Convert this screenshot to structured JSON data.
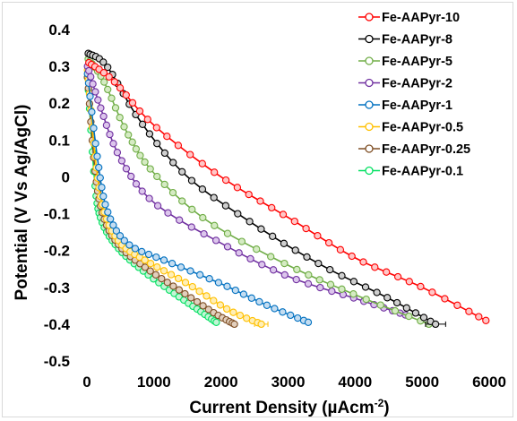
{
  "chart_data": {
    "type": "line",
    "title": "",
    "xlabel": "Current Density (µAcm",
    "xlabel_sup": "-2",
    "xlabel_end": ")",
    "ylabel": "Potential (V Vs Ag/AgCl)",
    "xlim": [
      0,
      6000
    ],
    "ylim": [
      -0.5,
      0.4
    ],
    "x_ticks": [
      0,
      1000,
      2000,
      3000,
      4000,
      5000,
      6000
    ],
    "x_tick_labels": [
      "0",
      "1000",
      "2000",
      "3000",
      "4000",
      "5000",
      "6000"
    ],
    "y_ticks": [
      0.4,
      0.3,
      0.2,
      0.1,
      0,
      -0.1,
      -0.2,
      -0.3,
      -0.4,
      -0.5
    ],
    "y_tick_labels": [
      "0.4",
      "0.3",
      "0.2",
      "0.1",
      "0",
      "-0.1",
      "-0.2",
      "-0.3",
      "-0.4",
      "-0.5"
    ],
    "grid": false,
    "legend_position": "top-right",
    "markers": "open-circle",
    "series": [
      {
        "name": "Fe-AAPyr-10",
        "color": "#ff0000",
        "fill": "#ffc7c7",
        "xerr_end": 0,
        "anchors": [
          [
            30,
            0.31
          ],
          [
            400,
            0.26
          ],
          [
            1000,
            0.14
          ],
          [
            2000,
            0.0
          ],
          [
            3000,
            -0.11
          ],
          [
            4000,
            -0.22
          ],
          [
            5000,
            -0.3
          ],
          [
            5950,
            -0.39
          ]
        ]
      },
      {
        "name": "Fe-AAPyr-8",
        "color": "#000000",
        "fill": "#cfcfcf",
        "xerr_end": 150,
        "anchors": [
          [
            20,
            0.335
          ],
          [
            300,
            0.3
          ],
          [
            800,
            0.15
          ],
          [
            1500,
            0.0
          ],
          [
            2500,
            -0.13
          ],
          [
            3500,
            -0.24
          ],
          [
            4500,
            -0.33
          ],
          [
            5200,
            -0.4
          ]
        ]
      },
      {
        "name": "Fe-AAPyr-5",
        "color": "#70ad47",
        "fill": "#d5ebc3",
        "xerr_end": 0,
        "anchors": [
          [
            20,
            0.32
          ],
          [
            250,
            0.26
          ],
          [
            600,
            0.12
          ],
          [
            1000,
            0.01
          ],
          [
            1800,
            -0.12
          ],
          [
            3000,
            -0.24
          ],
          [
            4000,
            -0.32
          ],
          [
            5100,
            -0.4
          ]
        ]
      },
      {
        "name": "Fe-AAPyr-2",
        "color": "#7030a0",
        "fill": "#dcc6ec",
        "xerr_end": 0,
        "anchors": [
          [
            10,
            0.3
          ],
          [
            200,
            0.19
          ],
          [
            500,
            0.05
          ],
          [
            1000,
            -0.07
          ],
          [
            2000,
            -0.18
          ],
          [
            3000,
            -0.27
          ],
          [
            4000,
            -0.33
          ],
          [
            4750,
            -0.375
          ]
        ]
      },
      {
        "name": "Fe-AAPyr-1",
        "color": "#0070c0",
        "fill": "#c4ddf1",
        "xerr_end": 0,
        "anchors": [
          [
            10,
            0.28
          ],
          [
            150,
            0.06
          ],
          [
            300,
            -0.09
          ],
          [
            600,
            -0.18
          ],
          [
            1200,
            -0.23
          ],
          [
            2000,
            -0.29
          ],
          [
            2700,
            -0.35
          ],
          [
            3300,
            -0.395
          ]
        ]
      },
      {
        "name": "Fe-AAPyr-0.5",
        "color": "#ffc000",
        "fill": "#ffeeb5",
        "xerr_end": 100,
        "anchors": [
          [
            10,
            0.29
          ],
          [
            120,
            0.06
          ],
          [
            250,
            -0.09
          ],
          [
            500,
            -0.18
          ],
          [
            900,
            -0.23
          ],
          [
            1500,
            -0.29
          ],
          [
            2100,
            -0.36
          ],
          [
            2600,
            -0.4
          ]
        ]
      },
      {
        "name": "Fe-AAPyr-0.25",
        "color": "#7f4f25",
        "fill": "#e2cfbd",
        "xerr_end": 0,
        "anchors": [
          [
            10,
            0.27
          ],
          [
            120,
            0.02
          ],
          [
            250,
            -0.11
          ],
          [
            500,
            -0.19
          ],
          [
            900,
            -0.25
          ],
          [
            1400,
            -0.31
          ],
          [
            1900,
            -0.37
          ],
          [
            2200,
            -0.4
          ]
        ]
      },
      {
        "name": "Fe-AAPyr-0.1",
        "color": "#00e060",
        "fill": "#c2f5d5",
        "xerr_end": 0,
        "anchors": [
          [
            10,
            0.27
          ],
          [
            120,
            -0.02
          ],
          [
            220,
            -0.12
          ],
          [
            450,
            -0.19
          ],
          [
            800,
            -0.25
          ],
          [
            1250,
            -0.31
          ],
          [
            1650,
            -0.36
          ],
          [
            1930,
            -0.395
          ]
        ]
      }
    ]
  }
}
